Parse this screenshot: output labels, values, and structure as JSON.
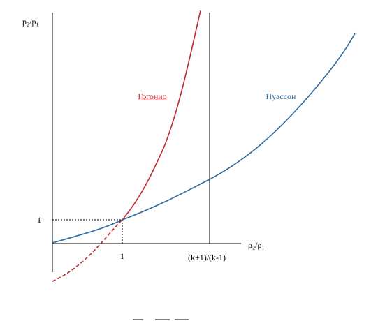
{
  "axes": {
    "y_label": "p₂/p₁",
    "y_one": "1",
    "x_one": "1",
    "x_limit": "(k+1)/(k-1)",
    "x_label": "ρ₂/ρ₁"
  },
  "curves": {
    "hugoniot": "Гогонио",
    "poisson": "Пуассон"
  }
}
